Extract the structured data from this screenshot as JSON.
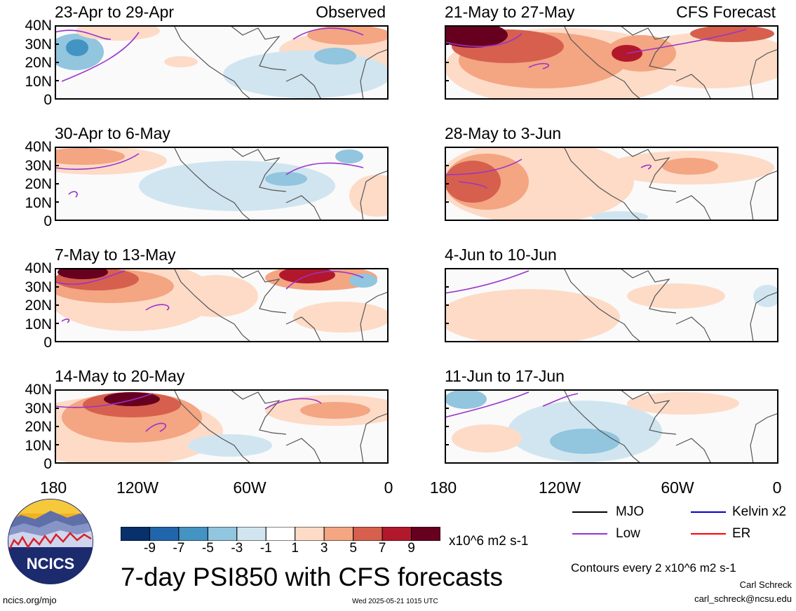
{
  "panels": [
    {
      "label": "23-Apr to 29-Apr",
      "tag": "Observed"
    },
    {
      "label": "30-Apr to 6-May",
      "tag": ""
    },
    {
      "label": "7-May to 13-May",
      "tag": ""
    },
    {
      "label": "14-May to 20-May",
      "tag": ""
    },
    {
      "label": "21-May to 27-May",
      "tag": "CFS Forecast"
    },
    {
      "label": "28-May to 3-Jun",
      "tag": ""
    },
    {
      "label": "4-Jun to 10-Jun",
      "tag": ""
    },
    {
      "label": "11-Jun to 17-Jun",
      "tag": ""
    }
  ],
  "lat_labels": [
    "40N",
    "30N",
    "20N",
    "10N",
    "0"
  ],
  "lon_labels": [
    "180",
    "120W",
    "60W",
    "0"
  ],
  "colorbar": {
    "values": [
      "-9",
      "-7",
      "-5",
      "-3",
      "-1",
      "1",
      "3",
      "5",
      "7",
      "9"
    ],
    "units": "x10^6 m2 s-1",
    "colors": [
      "#08306b",
      "#2166ac",
      "#4393c3",
      "#92c5de",
      "#d1e5f0",
      "#ffffff",
      "#fddbc7",
      "#f4a582",
      "#d6604d",
      "#b2182b",
      "#67001f"
    ]
  },
  "legend": [
    {
      "label": "MJO",
      "color": "#000000"
    },
    {
      "label": "Kelvin x2",
      "color": "#0000cc"
    },
    {
      "label": "Low",
      "color": "#9933cc"
    },
    {
      "label": "ER",
      "color": "#ff0000"
    }
  ],
  "logo_text": "NCICS",
  "main_title": "7-day PSI850 with CFS forecasts",
  "contour_note": "Contours every 2 x10^6 m2 s-1",
  "author": "Carl Schreck",
  "email": "carl_schreck@ncsu.edu",
  "site": "ncics.org/mjo",
  "timestamp": "Wed 2025-05-21 1015 UTC"
}
